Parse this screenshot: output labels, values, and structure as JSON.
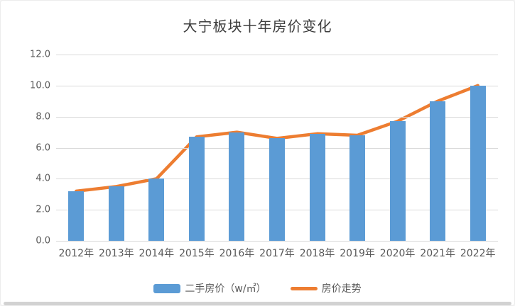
{
  "page": {
    "background_color": "#ffffff",
    "frame_color": "#d2d2d2"
  },
  "chart_data": {
    "type": "bar",
    "subtype": "bar-with-line-overlay",
    "title": "大宁板块十年房价变化",
    "categories": [
      "2012年",
      "2013年",
      "2014年",
      "2015年",
      "2016年",
      "2017年",
      "2018年",
      "2019年",
      "2020年",
      "2021年",
      "2022年"
    ],
    "series": [
      {
        "name": "二手房价（w/㎡）",
        "type": "bar",
        "color": "#5B9BD5",
        "values": [
          3.2,
          3.5,
          4.0,
          6.7,
          7.0,
          6.6,
          6.9,
          6.8,
          7.7,
          9.0,
          10.0
        ]
      },
      {
        "name": "房价走势",
        "type": "line",
        "color": "#ED7D31",
        "values": [
          3.2,
          3.5,
          4.0,
          6.7,
          7.0,
          6.6,
          6.9,
          6.8,
          7.7,
          9.0,
          10.0
        ]
      }
    ],
    "xlabel": "",
    "ylabel": "",
    "ylim": [
      0,
      12
    ],
    "ytick_step": 2,
    "ytick_labels": [
      "0.0",
      "2.0",
      "4.0",
      "6.0",
      "8.0",
      "10.0",
      "12.0"
    ],
    "grid": true,
    "gridline_color": "#d9d9d9",
    "axis_text_color": "#595959",
    "legend_position": "bottom"
  }
}
